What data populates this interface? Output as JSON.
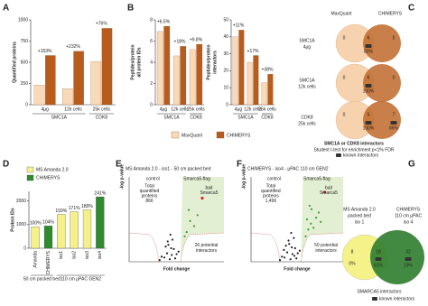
{
  "panel_labels": [
    "A",
    "B",
    "C",
    "D",
    "E",
    "F",
    "G"
  ],
  "chart_data": [
    {
      "type": "bar",
      "y_label": [
        "Quantified proteins"
      ],
      "categories": [
        "4µg",
        "12k cells",
        "25k cells"
      ],
      "groups": [
        "SMC1A",
        "CDK8"
      ],
      "series": [
        {
          "name": "MaxQuant",
          "color": "#f8d9b8",
          "values": [
            230,
            190,
            510
          ]
        },
        {
          "name": "CHIMERYS",
          "color": "#b85c1e",
          "values": [
            580,
            630,
            900
          ]
        }
      ],
      "change_labels": [
        "+153%",
        "+232%",
        "+76%"
      ],
      "ylim": [
        0,
        1000
      ],
      "yticks": [
        0,
        250,
        500,
        750,
        1000
      ]
    },
    {
      "type": "bar",
      "y_label": [
        "Peptides/protein",
        "all protein IDs"
      ],
      "categories": [
        "4µg",
        "12k cells",
        "25k cells"
      ],
      "groups": [
        "SMC1A",
        "CDK8"
      ],
      "series": [
        {
          "color": "#f8d9b8",
          "values": [
            6.9,
            4.6,
            5.2
          ]
        },
        {
          "color": "#b85c1e",
          "values": [
            7.4,
            5.5,
            5.7
          ]
        }
      ],
      "change_labels": [
        "+6.5%",
        "+18%",
        "+9.8%"
      ],
      "ylim": [
        0,
        8
      ],
      "yticks": [
        0,
        2,
        4,
        6,
        8
      ]
    },
    {
      "type": "bar",
      "y_label": [
        "Peptides/protein",
        "interactors"
      ],
      "categories": [
        "4µg",
        "12k cells",
        "25k cells"
      ],
      "groups": [
        "SMC1A",
        "CDK8"
      ],
      "series": [
        {
          "color": "#f8d9b8",
          "values": [
            40,
            25,
            13
          ]
        },
        {
          "color": "#b85c1e",
          "values": [
            44,
            29,
            18
          ]
        }
      ],
      "change_labels": [
        "+11%",
        "+17%",
        "+38%"
      ],
      "ylim": [
        0,
        50
      ],
      "yticks": [
        0,
        10,
        20,
        30,
        40,
        50
      ]
    },
    {
      "type": "bar",
      "y_label": [
        "Protein IDs"
      ],
      "categories": [
        "Amanda",
        "CHIMERYS",
        "iso1",
        "iso2",
        "iso3",
        "iso4"
      ],
      "groups": [
        "50 cm packed bed",
        "110 cm µPAC GEN2"
      ],
      "values": [
        900,
        940,
        1430,
        1540,
        1620,
        2170
      ],
      "value_labels": [
        "100%",
        "104%",
        "159%",
        "171%",
        "180%",
        "241%"
      ],
      "colors": [
        "#f5f08a",
        "#2e8b2e",
        "#f5f08a",
        "#f5f08a",
        "#f5f08a",
        "#2e8b2e"
      ],
      "legend": [
        {
          "name": "MS Amanda 2.0",
          "color": "#f5f08a"
        },
        {
          "name": "CHIMERYS",
          "color": "#2e8b2e"
        }
      ],
      "ylim": [
        0,
        2400
      ],
      "yticks": [
        0,
        1000,
        2000
      ]
    },
    {
      "type": "scatter",
      "title": "MS Amanda 2.0 - iso1 - 50 cm packed bed",
      "x_label": "Fold change",
      "y_label": [
        "-log p-value"
      ],
      "left_label": "control",
      "right_label": "Smarca5-flag",
      "total": [
        "Total",
        "quantified",
        "proteins",
        "866"
      ],
      "bait": [
        "bait",
        "Smarca5"
      ],
      "interactors": [
        "26 potential",
        "interactors"
      ],
      "xlim": [
        -6,
        8
      ],
      "ylim": [
        0,
        10
      ],
      "series": [
        {
          "color": "#222222",
          "x": [
            -0.8,
            -0.4,
            0,
            0.3,
            0.6,
            -1.2,
            1.0,
            -0.2,
            0.4,
            -0.6,
            0.8,
            1.3,
            -1.5,
            0.1,
            0.2,
            -0.3
          ],
          "values": [
            0.5,
            1.0,
            0.3,
            0.8,
            1.5,
            0.6,
            0.9,
            2.0,
            2.6,
            1.8,
            0.4,
            1.2,
            0.2,
            3.2,
            1.6,
            2.4
          ]
        },
        {
          "color": "#3a9a3a",
          "x": [
            2.5,
            3.0,
            3.6,
            2.2,
            4.1,
            2.8
          ],
          "values": [
            3.5,
            4.8,
            4.2,
            3.0,
            5.5,
            6.1
          ]
        },
        {
          "color": "#e02020",
          "x": [
            4.8
          ],
          "values": [
            7.5
          ]
        }
      ]
    },
    {
      "type": "scatter",
      "title": "CHIMERYS - iso4 - µPAC 110 cm GEN2",
      "x_label": "Fold change",
      "y_label": [
        "-log p-value"
      ],
      "left_label": "control",
      "right_label": "Smarca5-flag",
      "total": [
        "Total",
        "quantified",
        "proteins",
        "1,496"
      ],
      "bait": [
        "bait",
        "Smarca5"
      ],
      "interactors": [
        "50 potential",
        "interactors"
      ],
      "xlim": [
        -6,
        8
      ],
      "ylim": [
        0,
        10
      ],
      "series": [
        {
          "color": "#222222",
          "x": [
            -0.9,
            -0.5,
            0,
            0.3,
            0.7,
            -1.3,
            1.1,
            -0.2,
            0.5,
            -0.7,
            0.9,
            1.4,
            -1.6,
            0.1,
            0.2,
            -0.3,
            -1.0,
            0.6
          ],
          "values": [
            0.5,
            1.1,
            0.3,
            0.9,
            1.6,
            0.6,
            1.0,
            2.1,
            2.8,
            1.9,
            0.4,
            1.3,
            0.2,
            3.4,
            1.7,
            2.5,
            1.4,
            0.7
          ]
        },
        {
          "color": "#3a9a3a",
          "x": [
            2.3,
            2.7,
            3.1,
            3.5,
            3.9,
            4.3,
            2.5,
            3.2,
            4.6,
            2.9
          ],
          "values": [
            3.0,
            3.8,
            4.5,
            4.0,
            5.2,
            5.8,
            5.0,
            6.2,
            4.7,
            6.6
          ]
        },
        {
          "color": "#e02020",
          "x": [
            5.2
          ],
          "values": [
            8.2
          ]
        }
      ]
    }
  ],
  "venn_c": {
    "header": [
      "MaxQuant",
      "CHIMERYS"
    ],
    "rows": [
      {
        "label": [
          "SMC1A",
          "4µg"
        ],
        "left": "0",
        "center": "6",
        "center_pct": "83%",
        "right": "0"
      },
      {
        "label": [
          "SMC1A",
          "12k cells"
        ],
        "left": "0",
        "center": "6",
        "center_pct": "100%",
        "right": "0"
      },
      {
        "label": [
          "CDK8",
          "25k cells"
        ],
        "left": "0",
        "center": "5",
        "center_pct": "100%",
        "right": "7",
        "right_pct": "86%"
      }
    ],
    "caption": "SMC1A or CDK8 interactors",
    "note": "Student t-test for enrichment p<1% FDR",
    "legend": "known interactors"
  },
  "venn_g": {
    "left_title": [
      "MS Amanda 2.0",
      "packed bed",
      "iso 1"
    ],
    "right_title": [
      "CHIMERYS",
      "110 cm µPAC",
      "iso 4"
    ],
    "left": "8",
    "left_pct": "0%",
    "center": "18",
    "center_pct": "61%",
    "right": "32",
    "right_pct": "19%",
    "caption": "SMARCA5 interactors",
    "legend": "known interactors"
  }
}
